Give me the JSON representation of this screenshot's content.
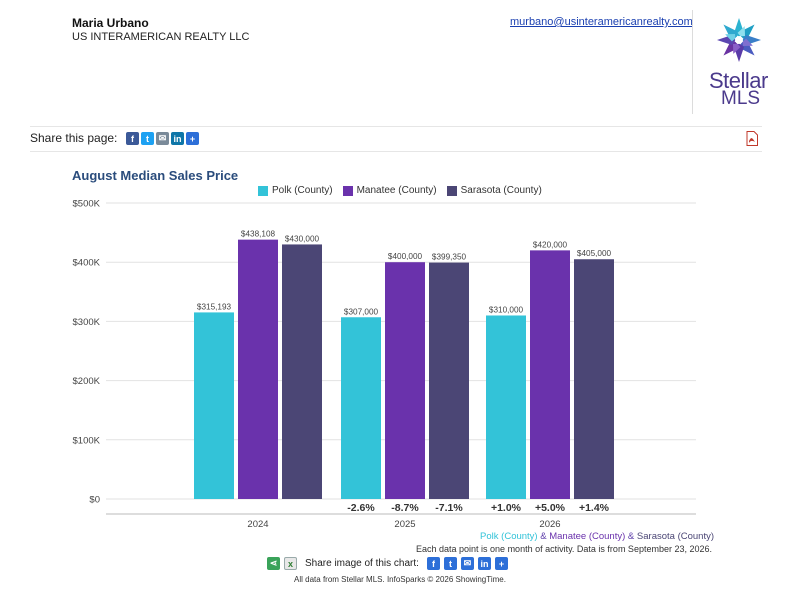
{
  "header": {
    "agent_name": "Maria Urbano",
    "agent_company": "US INTERAMERICAN REALTY LLC",
    "agent_email": "murbano@usinteramericanrealty.com",
    "logo_line1": "Stellar",
    "logo_line2": "MLS"
  },
  "share": {
    "label": "Share this page:",
    "icons": [
      "facebook-icon",
      "twitter-icon",
      "email-icon",
      "linkedin-icon",
      "plus-icon"
    ]
  },
  "footer": {
    "series_note": [
      {
        "text": "Polk (County)",
        "color": "#33c3d8"
      },
      {
        "text": " & ",
        "color": "#5a3aa8"
      },
      {
        "text": "Manatee (County)",
        "color": "#6a32ac"
      },
      {
        "text": " & ",
        "color": "#5a3aa8"
      },
      {
        "text": "Sarasota (County)",
        "color": "#4b4675"
      }
    ],
    "data_note": "Each data point is one month of activity. Data is from September 23, 2026.",
    "share_image_label": "Share image of this chart:",
    "credit": "All data from Stellar MLS. InfoSparks © 2026 ShowingTime."
  },
  "colors": {
    "polk": "#33c3d8",
    "manatee": "#6a32ac",
    "sarasota": "#4b4675",
    "title": "#2a4c7c",
    "grid": "#e2e2e2"
  },
  "chart_data": {
    "type": "bar",
    "title": "August Median Sales Price",
    "categories": [
      "2024",
      "2025",
      "2026"
    ],
    "series": [
      {
        "name": "Polk (County)",
        "color": "#33c3d8",
        "values": [
          315193,
          307000,
          310000
        ],
        "labels": [
          "$315,193",
          "$307,000",
          "$310,000"
        ],
        "changes": [
          "",
          "-2.6%",
          "+1.0%"
        ]
      },
      {
        "name": "Manatee (County)",
        "color": "#6a32ac",
        "values": [
          438108,
          400000,
          420000
        ],
        "labels": [
          "$438,108",
          "$400,000",
          "$420,000"
        ],
        "changes": [
          "",
          "-8.7%",
          "+5.0%"
        ]
      },
      {
        "name": "Sarasota (County)",
        "color": "#4b4675",
        "values": [
          430000,
          399350,
          405000
        ],
        "labels": [
          "$430,000",
          "$399,350",
          "$405,000"
        ],
        "changes": [
          "",
          "-7.1%",
          "+1.4%"
        ]
      }
    ],
    "y_ticks": [
      "$0",
      "$100K",
      "$200K",
      "$300K",
      "$400K",
      "$500K"
    ],
    "ylim": [
      0,
      500000
    ],
    "grid": true,
    "legend": "top"
  }
}
